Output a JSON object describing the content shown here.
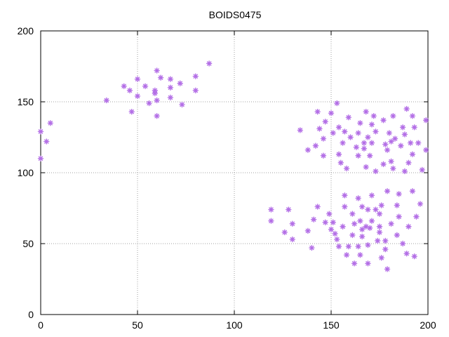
{
  "chart_data": {
    "type": "scatter",
    "title": "BOIDS0475",
    "xlabel": "",
    "ylabel": "",
    "xlim": [
      0,
      200
    ],
    "ylim": [
      0,
      200
    ],
    "xticks": [
      0,
      50,
      100,
      150,
      200
    ],
    "yticks": [
      0,
      50,
      100,
      150,
      200
    ],
    "grid": true,
    "series": [
      {
        "color": "#b36ee6",
        "marker": "asterisk",
        "points": [
          [
            0,
            129
          ],
          [
            0,
            110
          ],
          [
            3,
            122
          ],
          [
            5,
            135
          ],
          [
            34,
            151
          ],
          [
            43,
            161
          ],
          [
            46,
            158
          ],
          [
            47,
            143
          ],
          [
            50,
            166
          ],
          [
            50,
            154
          ],
          [
            54,
            161
          ],
          [
            56,
            149
          ],
          [
            59,
            158
          ],
          [
            59,
            156
          ],
          [
            60,
            172
          ],
          [
            60,
            151
          ],
          [
            60,
            140
          ],
          [
            62,
            167
          ],
          [
            67,
            166
          ],
          [
            67,
            160
          ],
          [
            67,
            153
          ],
          [
            72,
            163
          ],
          [
            73,
            148
          ],
          [
            80,
            168
          ],
          [
            80,
            158
          ],
          [
            87,
            177
          ],
          [
            119,
            74
          ],
          [
            119,
            66
          ],
          [
            126,
            58
          ],
          [
            128,
            74
          ],
          [
            130,
            64
          ],
          [
            130,
            53
          ],
          [
            134,
            130
          ],
          [
            138,
            59
          ],
          [
            138,
            116
          ],
          [
            140,
            47
          ],
          [
            141,
            67
          ],
          [
            142,
            119
          ],
          [
            143,
            76
          ],
          [
            143,
            143
          ],
          [
            144,
            131
          ],
          [
            146,
            124
          ],
          [
            146,
            112
          ],
          [
            147,
            65
          ],
          [
            147,
            136
          ],
          [
            149,
            71
          ],
          [
            150,
            60
          ],
          [
            150,
            142
          ],
          [
            151,
            65
          ],
          [
            151,
            128
          ],
          [
            152,
            57
          ],
          [
            153,
            53
          ],
          [
            153,
            149
          ],
          [
            154,
            48
          ],
          [
            154,
            132
          ],
          [
            154,
            113
          ],
          [
            155,
            107
          ],
          [
            156,
            62
          ],
          [
            156,
            121
          ],
          [
            157,
            84
          ],
          [
            157,
            76
          ],
          [
            157,
            129
          ],
          [
            158,
            103
          ],
          [
            158,
            42
          ],
          [
            159,
            48
          ],
          [
            159,
            139
          ],
          [
            160,
            125
          ],
          [
            161,
            71
          ],
          [
            161,
            56
          ],
          [
            162,
            64
          ],
          [
            162,
            36
          ],
          [
            163,
            118
          ],
          [
            164,
            82
          ],
          [
            164,
            112
          ],
          [
            164,
            128
          ],
          [
            164,
            48
          ],
          [
            165,
            66
          ],
          [
            165,
            42
          ],
          [
            165,
            135
          ],
          [
            166,
            60
          ],
          [
            166,
            55
          ],
          [
            166,
            76
          ],
          [
            167,
            117
          ],
          [
            167,
            121
          ],
          [
            168,
            104
          ],
          [
            168,
            62
          ],
          [
            168,
            143
          ],
          [
            169,
            49
          ],
          [
            169,
            74
          ],
          [
            169,
            36
          ],
          [
            169,
            125
          ],
          [
            170,
            61
          ],
          [
            170,
            112
          ],
          [
            171,
            121
          ],
          [
            171,
            84
          ],
          [
            171,
            66
          ],
          [
            171,
            134
          ],
          [
            172,
            140
          ],
          [
            173,
            129
          ],
          [
            173,
            101
          ],
          [
            173,
            74
          ],
          [
            174,
            52
          ],
          [
            175,
            58
          ],
          [
            175,
            71
          ],
          [
            175,
            62
          ],
          [
            176,
            40
          ],
          [
            176,
            77
          ],
          [
            177,
            137
          ],
          [
            177,
            106
          ],
          [
            178,
            52
          ],
          [
            178,
            120
          ],
          [
            178,
            46
          ],
          [
            179,
            116
          ],
          [
            179,
            87
          ],
          [
            179,
            32
          ],
          [
            180,
            128
          ],
          [
            181,
            108
          ],
          [
            181,
            122
          ],
          [
            181,
            64
          ],
          [
            182,
            140
          ],
          [
            182,
            103
          ],
          [
            183,
            124
          ],
          [
            184,
            56
          ],
          [
            184,
            77
          ],
          [
            185,
            85
          ],
          [
            185,
            69
          ],
          [
            186,
            119
          ],
          [
            187,
            50
          ],
          [
            187,
            132
          ],
          [
            188,
            127
          ],
          [
            188,
            101
          ],
          [
            189,
            145
          ],
          [
            189,
            43
          ],
          [
            190,
            62
          ],
          [
            190,
            107
          ],
          [
            191,
            121
          ],
          [
            192,
            140
          ],
          [
            192,
            87
          ],
          [
            192,
            113
          ],
          [
            193,
            41
          ],
          [
            193,
            132
          ],
          [
            194,
            69
          ],
          [
            195,
            121
          ],
          [
            196,
            78
          ],
          [
            197,
            102
          ],
          [
            199,
            137
          ],
          [
            199,
            116
          ]
        ]
      }
    ]
  }
}
